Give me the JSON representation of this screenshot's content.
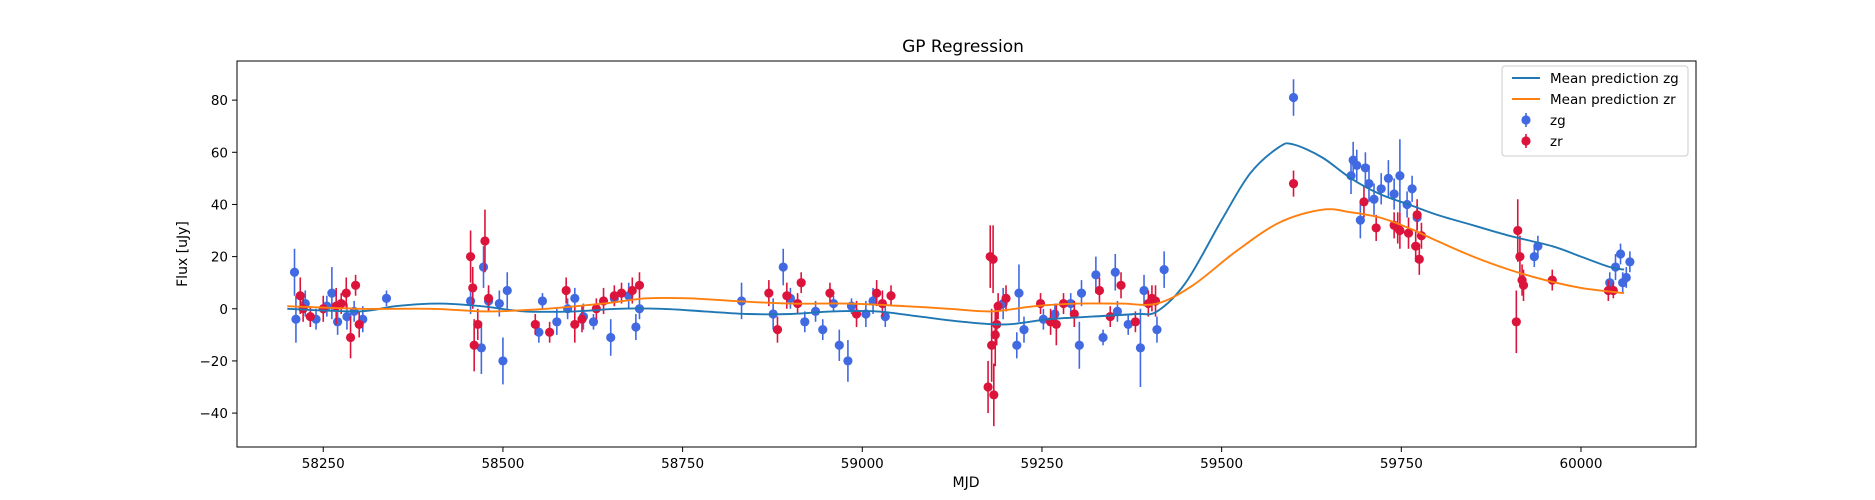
{
  "chart_data": {
    "type": "scatter",
    "title": "GP Regression",
    "xlabel": "MJD",
    "ylabel": "Flux [uJy]",
    "xlim": [
      58130,
      60160
    ],
    "ylim": [
      -53,
      95
    ],
    "xticks": [
      58250,
      58500,
      58750,
      59000,
      59250,
      59500,
      59750,
      60000
    ],
    "yticks": [
      -40,
      -20,
      0,
      20,
      40,
      60,
      80
    ],
    "legend_position": "upper right",
    "grid": false,
    "series": [
      {
        "name": "Mean prediction zg",
        "kind": "line",
        "color": "#1f77b4",
        "x": [
          58200,
          58300,
          58350,
          58410,
          58470,
          58530,
          58600,
          58660,
          58720,
          58780,
          58840,
          58900,
          58960,
          59020,
          59080,
          59140,
          59200,
          59260,
          59320,
          59380,
          59410,
          59450,
          59500,
          59540,
          59580,
          59600,
          59640,
          59680,
          59720,
          59760,
          59800,
          59850,
          59900,
          59960,
          60000,
          60040,
          60060
        ],
        "y": [
          0,
          -1,
          1,
          2,
          1,
          -1,
          -1,
          0,
          0,
          -1,
          -2,
          -2,
          -1,
          -1,
          -3,
          -5,
          -6,
          -4,
          -3,
          -2,
          -1,
          10,
          34,
          52,
          62,
          63,
          58,
          50,
          44,
          40,
          36,
          32,
          28,
          24,
          20,
          16,
          15
        ]
      },
      {
        "name": "Mean prediction zr",
        "kind": "line",
        "color": "#ff7f0e",
        "x": [
          58200,
          58300,
          58400,
          58480,
          58560,
          58640,
          58700,
          58760,
          58820,
          58900,
          58980,
          59060,
          59120,
          59180,
          59240,
          59300,
          59360,
          59410,
          59460,
          59520,
          59580,
          59640,
          59680,
          59720,
          59760,
          59800,
          59850,
          59900,
          59950,
          60000,
          60060
        ],
        "y": [
          1,
          0,
          0,
          -1,
          0,
          2,
          4,
          4,
          3,
          2,
          2,
          1,
          0,
          -1,
          1,
          2,
          2,
          2,
          9,
          22,
          33,
          38,
          37,
          35,
          31,
          26,
          20,
          15,
          11,
          8,
          6
        ]
      },
      {
        "name": "zg",
        "kind": "errorbar",
        "color": "#4169e1",
        "points": [
          {
            "x": 58210,
            "y": 14,
            "err": 9
          },
          {
            "x": 58212,
            "y": -4,
            "err": 9
          },
          {
            "x": 58225,
            "y": 2,
            "err": 5
          },
          {
            "x": 58240,
            "y": -4,
            "err": 4
          },
          {
            "x": 58255,
            "y": 1,
            "err": 4
          },
          {
            "x": 58262,
            "y": 6,
            "err": 10
          },
          {
            "x": 58270,
            "y": -5,
            "err": 5
          },
          {
            "x": 58283,
            "y": -3,
            "err": 5
          },
          {
            "x": 58293,
            "y": -1,
            "err": 4
          },
          {
            "x": 58305,
            "y": -4,
            "err": 5
          },
          {
            "x": 58338,
            "y": 4,
            "err": 3
          },
          {
            "x": 58455,
            "y": 3,
            "err": 5
          },
          {
            "x": 58470,
            "y": -15,
            "err": 10
          },
          {
            "x": 58473,
            "y": 16,
            "err": 8
          },
          {
            "x": 58480,
            "y": 3,
            "err": 4
          },
          {
            "x": 58495,
            "y": 2,
            "err": 5
          },
          {
            "x": 58500,
            "y": -20,
            "err": 9
          },
          {
            "x": 58506,
            "y": 7,
            "err": 7
          },
          {
            "x": 58550,
            "y": -9,
            "err": 4
          },
          {
            "x": 58555,
            "y": 3,
            "err": 3
          },
          {
            "x": 58575,
            "y": -5,
            "err": 5
          },
          {
            "x": 58590,
            "y": 0,
            "err": 4
          },
          {
            "x": 58600,
            "y": 4,
            "err": 4
          },
          {
            "x": 58612,
            "y": -3,
            "err": 5
          },
          {
            "x": 58626,
            "y": -5,
            "err": 3
          },
          {
            "x": 58650,
            "y": -11,
            "err": 7
          },
          {
            "x": 58655,
            "y": 4,
            "err": 3
          },
          {
            "x": 58675,
            "y": 5,
            "err": 5
          },
          {
            "x": 58685,
            "y": -7,
            "err": 5
          },
          {
            "x": 58690,
            "y": 0,
            "err": 4
          },
          {
            "x": 58832,
            "y": 3,
            "err": 7
          },
          {
            "x": 58876,
            "y": -2,
            "err": 6
          },
          {
            "x": 58890,
            "y": 16,
            "err": 7
          },
          {
            "x": 58900,
            "y": 4,
            "err": 4
          },
          {
            "x": 58920,
            "y": -5,
            "err": 4
          },
          {
            "x": 58935,
            "y": -1,
            "err": 4
          },
          {
            "x": 58945,
            "y": -8,
            "err": 4
          },
          {
            "x": 58960,
            "y": 2,
            "err": 3
          },
          {
            "x": 58968,
            "y": -14,
            "err": 6
          },
          {
            "x": 58980,
            "y": -20,
            "err": 8
          },
          {
            "x": 58985,
            "y": 1,
            "err": 3
          },
          {
            "x": 59005,
            "y": -2,
            "err": 5
          },
          {
            "x": 59015,
            "y": 3,
            "err": 5
          },
          {
            "x": 59032,
            "y": -3,
            "err": 4
          },
          {
            "x": 59196,
            "y": 2,
            "err": 6
          },
          {
            "x": 59215,
            "y": -14,
            "err": 5
          },
          {
            "x": 59218,
            "y": 6,
            "err": 11
          },
          {
            "x": 59225,
            "y": -8,
            "err": 5
          },
          {
            "x": 59252,
            "y": -4,
            "err": 4
          },
          {
            "x": 59268,
            "y": -2,
            "err": 4
          },
          {
            "x": 59290,
            "y": 2,
            "err": 4
          },
          {
            "x": 59302,
            "y": -14,
            "err": 9
          },
          {
            "x": 59305,
            "y": 6,
            "err": 5
          },
          {
            "x": 59325,
            "y": 13,
            "err": 7
          },
          {
            "x": 59335,
            "y": -11,
            "err": 3
          },
          {
            "x": 59352,
            "y": 14,
            "err": 7
          },
          {
            "x": 59355,
            "y": -1,
            "err": 4
          },
          {
            "x": 59370,
            "y": -6,
            "err": 4
          },
          {
            "x": 59387,
            "y": -15,
            "err": 15
          },
          {
            "x": 59392,
            "y": 7,
            "err": 6
          },
          {
            "x": 59410,
            "y": -8,
            "err": 5
          },
          {
            "x": 59420,
            "y": 15,
            "err": 7
          },
          {
            "x": 59600,
            "y": 81,
            "err": 7
          },
          {
            "x": 59680,
            "y": 51,
            "err": 7
          },
          {
            "x": 59683,
            "y": 57,
            "err": 7
          },
          {
            "x": 59688,
            "y": 55,
            "err": 6
          },
          {
            "x": 59693,
            "y": 34,
            "err": 7
          },
          {
            "x": 59700,
            "y": 54,
            "err": 6
          },
          {
            "x": 59705,
            "y": 48,
            "err": 7
          },
          {
            "x": 59712,
            "y": 42,
            "err": 6
          },
          {
            "x": 59722,
            "y": 46,
            "err": 6
          },
          {
            "x": 59732,
            "y": 50,
            "err": 7
          },
          {
            "x": 59740,
            "y": 44,
            "err": 6
          },
          {
            "x": 59748,
            "y": 51,
            "err": 14
          },
          {
            "x": 59758,
            "y": 40,
            "err": 5
          },
          {
            "x": 59765,
            "y": 46,
            "err": 5
          },
          {
            "x": 59772,
            "y": 35,
            "err": 5
          },
          {
            "x": 60040,
            "y": 10,
            "err": 4
          },
          {
            "x": 60048,
            "y": 16,
            "err": 5
          },
          {
            "x": 60055,
            "y": 21,
            "err": 4
          },
          {
            "x": 60058,
            "y": 10,
            "err": 4
          },
          {
            "x": 60063,
            "y": 12,
            "err": 4
          },
          {
            "x": 60068,
            "y": 18,
            "err": 4
          },
          {
            "x": 59935,
            "y": 20,
            "err": 4
          },
          {
            "x": 59940,
            "y": 24,
            "err": 4
          }
        ]
      },
      {
        "name": "zr",
        "kind": "errorbar",
        "color": "#dc143c",
        "points": [
          {
            "x": 58218,
            "y": 5,
            "err": 7
          },
          {
            "x": 58222,
            "y": 0,
            "err": 5
          },
          {
            "x": 58232,
            "y": -3,
            "err": 4
          },
          {
            "x": 58250,
            "y": 0,
            "err": 5
          },
          {
            "x": 58268,
            "y": 1,
            "err": 7
          },
          {
            "x": 58275,
            "y": 2,
            "err": 4
          },
          {
            "x": 58282,
            "y": 6,
            "err": 6
          },
          {
            "x": 58288,
            "y": -11,
            "err": 8
          },
          {
            "x": 58295,
            "y": 9,
            "err": 4
          },
          {
            "x": 58300,
            "y": -6,
            "err": 5
          },
          {
            "x": 58455,
            "y": 20,
            "err": 10
          },
          {
            "x": 58458,
            "y": 8,
            "err": 8
          },
          {
            "x": 58460,
            "y": -14,
            "err": 10
          },
          {
            "x": 58465,
            "y": -6,
            "err": 6
          },
          {
            "x": 58475,
            "y": 26,
            "err": 12
          },
          {
            "x": 58480,
            "y": 4,
            "err": 5
          },
          {
            "x": 58545,
            "y": -6,
            "err": 4
          },
          {
            "x": 58565,
            "y": -9,
            "err": 4
          },
          {
            "x": 58588,
            "y": 7,
            "err": 5
          },
          {
            "x": 58600,
            "y": -6,
            "err": 7
          },
          {
            "x": 58610,
            "y": -4,
            "err": 5
          },
          {
            "x": 58630,
            "y": 0,
            "err": 4
          },
          {
            "x": 58640,
            "y": 3,
            "err": 5
          },
          {
            "x": 58655,
            "y": 5,
            "err": 4
          },
          {
            "x": 58665,
            "y": 6,
            "err": 4
          },
          {
            "x": 58680,
            "y": 7,
            "err": 5
          },
          {
            "x": 58690,
            "y": 9,
            "err": 5
          },
          {
            "x": 58870,
            "y": 6,
            "err": 5
          },
          {
            "x": 58882,
            "y": -8,
            "err": 5
          },
          {
            "x": 58895,
            "y": 5,
            "err": 5
          },
          {
            "x": 58910,
            "y": 2,
            "err": 4
          },
          {
            "x": 58915,
            "y": 10,
            "err": 4
          },
          {
            "x": 58955,
            "y": 6,
            "err": 4
          },
          {
            "x": 58992,
            "y": -2,
            "err": 5
          },
          {
            "x": 59020,
            "y": 6,
            "err": 5
          },
          {
            "x": 59028,
            "y": 2,
            "err": 5
          },
          {
            "x": 59040,
            "y": 5,
            "err": 4
          },
          {
            "x": 59175,
            "y": -30,
            "err": 10
          },
          {
            "x": 59178,
            "y": 20,
            "err": 12
          },
          {
            "x": 59180,
            "y": -14,
            "err": 14
          },
          {
            "x": 59182,
            "y": 19,
            "err": 13
          },
          {
            "x": 59183,
            "y": -33,
            "err": 12
          },
          {
            "x": 59185,
            "y": -10,
            "err": 12
          },
          {
            "x": 59187,
            "y": -6,
            "err": 8
          },
          {
            "x": 59189,
            "y": 1,
            "err": 5
          },
          {
            "x": 59200,
            "y": 4,
            "err": 5
          },
          {
            "x": 59248,
            "y": 2,
            "err": 4
          },
          {
            "x": 59262,
            "y": -5,
            "err": 5
          },
          {
            "x": 59270,
            "y": -6,
            "err": 8
          },
          {
            "x": 59280,
            "y": 2,
            "err": 4
          },
          {
            "x": 59295,
            "y": -2,
            "err": 5
          },
          {
            "x": 59330,
            "y": 7,
            "err": 5
          },
          {
            "x": 59345,
            "y": -3,
            "err": 4
          },
          {
            "x": 59360,
            "y": 9,
            "err": 5
          },
          {
            "x": 59380,
            "y": -5,
            "err": 4
          },
          {
            "x": 59398,
            "y": 2,
            "err": 5
          },
          {
            "x": 59403,
            "y": 4,
            "err": 5
          },
          {
            "x": 59408,
            "y": 3,
            "err": 6
          },
          {
            "x": 59600,
            "y": 48,
            "err": 5
          },
          {
            "x": 59698,
            "y": 41,
            "err": 6
          },
          {
            "x": 59715,
            "y": 31,
            "err": 5
          },
          {
            "x": 59740,
            "y": 32,
            "err": 5
          },
          {
            "x": 59745,
            "y": 31,
            "err": 6
          },
          {
            "x": 59748,
            "y": 30,
            "err": 7
          },
          {
            "x": 59760,
            "y": 29,
            "err": 6
          },
          {
            "x": 59770,
            "y": 24,
            "err": 6
          },
          {
            "x": 59772,
            "y": 36,
            "err": 6
          },
          {
            "x": 59775,
            "y": 19,
            "err": 6
          },
          {
            "x": 59778,
            "y": 28,
            "err": 5
          },
          {
            "x": 59910,
            "y": -5,
            "err": 12
          },
          {
            "x": 59912,
            "y": 30,
            "err": 12
          },
          {
            "x": 59915,
            "y": 20,
            "err": 8
          },
          {
            "x": 59918,
            "y": 11,
            "err": 6
          },
          {
            "x": 59920,
            "y": 9,
            "err": 6
          },
          {
            "x": 59960,
            "y": 11,
            "err": 4
          },
          {
            "x": 60038,
            "y": 7,
            "err": 4
          },
          {
            "x": 60045,
            "y": 7,
            "err": 3
          }
        ]
      }
    ]
  }
}
